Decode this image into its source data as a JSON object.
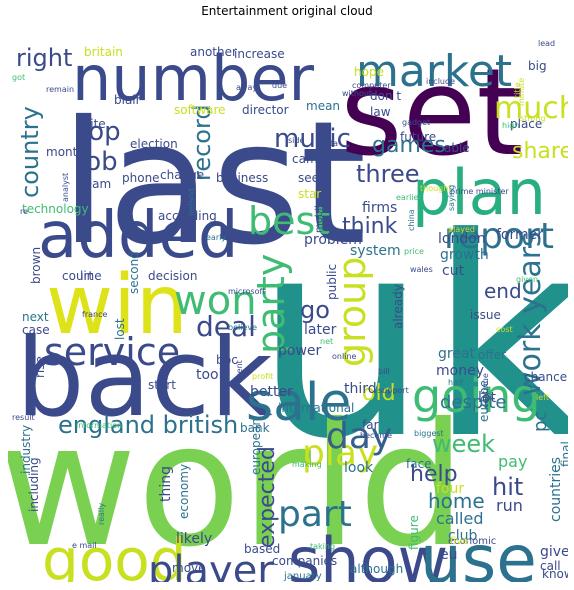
{
  "title": "Entertainment original cloud",
  "palette": {
    "indigo": "#3b4a8b",
    "navy": "#414487",
    "purple": "#46327e",
    "dark_purple": "#440154",
    "blue": "#355f8d",
    "steel": "#2c728e",
    "teal": "#21918c",
    "sea": "#28ae80",
    "green": "#3fbc73",
    "lime": "#7ad151",
    "light_lime": "#95d840",
    "yellow": "#c8e020",
    "bright_yellow": "#dde318"
  },
  "words": [
    {
      "text": "uk",
      "c": "teal"
    },
    {
      "text": "world",
      "c": "lime"
    },
    {
      "text": "last",
      "c": "indigo"
    },
    {
      "text": "set",
      "c": "dark_purple"
    },
    {
      "text": "back",
      "c": "indigo"
    },
    {
      "text": "number",
      "c": "indigo"
    },
    {
      "text": "added",
      "c": "indigo"
    },
    {
      "text": "win",
      "c": "bright_yellow"
    },
    {
      "text": "plan",
      "c": "sea"
    },
    {
      "text": "market",
      "c": "steel"
    },
    {
      "text": "good",
      "c": "yellow"
    },
    {
      "text": "show",
      "c": "indigo"
    },
    {
      "text": "use",
      "c": "steel"
    },
    {
      "text": "sale",
      "c": "steel"
    },
    {
      "text": "player",
      "c": "indigo"
    },
    {
      "text": "service",
      "c": "indigo"
    },
    {
      "text": "going",
      "c": "green"
    },
    {
      "text": "report",
      "c": "steel"
    },
    {
      "text": "won",
      "c": "green"
    },
    {
      "text": "best",
      "c": "green"
    },
    {
      "text": "part",
      "c": "steel"
    },
    {
      "text": "play",
      "c": "yellow"
    },
    {
      "text": "party",
      "c": "green"
    },
    {
      "text": "group",
      "c": "yellow"
    },
    {
      "text": "work years",
      "c": "steel"
    },
    {
      "text": "day",
      "c": "blue"
    },
    {
      "text": "deal",
      "c": "indigo"
    },
    {
      "text": "music",
      "c": "indigo"
    },
    {
      "text": "england british",
      "c": "steel"
    },
    {
      "text": "much",
      "c": "yellow"
    },
    {
      "text": "right",
      "c": "indigo"
    },
    {
      "text": "top",
      "c": "indigo"
    },
    {
      "text": "job",
      "c": "indigo"
    },
    {
      "text": "record",
      "c": "steel"
    },
    {
      "text": "three",
      "c": "indigo"
    },
    {
      "text": "games",
      "c": "steel"
    },
    {
      "text": "share",
      "c": "yellow"
    },
    {
      "text": "think",
      "c": "indigo"
    },
    {
      "text": "week",
      "c": "green"
    },
    {
      "text": "help",
      "c": "indigo"
    },
    {
      "text": "hit",
      "c": "indigo"
    },
    {
      "text": "home",
      "c": "steel"
    },
    {
      "text": "expected",
      "c": "indigo"
    },
    {
      "text": "award",
      "c": "yellow"
    },
    {
      "text": "used",
      "c": "indigo"
    },
    {
      "text": "million",
      "c": "indigo"
    },
    {
      "text": "country",
      "c": "steel"
    },
    {
      "text": "go",
      "c": "indigo"
    },
    {
      "text": "old",
      "c": "yellow"
    },
    {
      "text": "end",
      "c": "indigo"
    },
    {
      "text": "despite",
      "c": "steel"
    },
    {
      "text": "called",
      "c": "steel"
    },
    {
      "text": "pc",
      "c": "steel"
    },
    {
      "text": "club",
      "c": "steel"
    },
    {
      "text": "eu",
      "c": "indigo"
    },
    {
      "text": "run",
      "c": "indigo"
    },
    {
      "text": "four",
      "c": "yellow"
    },
    {
      "text": "face",
      "c": "steel"
    },
    {
      "text": "pay",
      "c": "green"
    },
    {
      "text": "look",
      "c": "steel"
    },
    {
      "text": "far",
      "c": "indigo"
    },
    {
      "text": "become",
      "c": "indigo"
    },
    {
      "text": "biggest",
      "c": "steel"
    },
    {
      "text": "give",
      "c": "indigo"
    },
    {
      "text": "know",
      "c": "indigo"
    },
    {
      "text": "call",
      "c": "indigo"
    },
    {
      "text": "countries",
      "c": "steel"
    },
    {
      "text": "final",
      "c": "steel"
    },
    {
      "text": "figure",
      "c": "green"
    },
    {
      "text": "even",
      "c": "indigo"
    },
    {
      "text": "around",
      "c": "indigo"
    },
    {
      "text": "claim",
      "c": "steel"
    },
    {
      "text": "tv",
      "c": "indigo"
    },
    {
      "text": "companies",
      "c": "indigo"
    },
    {
      "text": "january",
      "c": "steel"
    },
    {
      "text": "based",
      "c": "indigo"
    },
    {
      "text": "point",
      "c": "steel"
    },
    {
      "text": "spokesman",
      "c": "yellow"
    },
    {
      "text": "move",
      "c": "indigo"
    },
    {
      "text": "likely",
      "c": "indigo"
    },
    {
      "text": "thing",
      "c": "indigo"
    },
    {
      "text": "economy",
      "c": "steel"
    },
    {
      "text": "european",
      "c": "steel"
    },
    {
      "text": "bank",
      "c": "steel"
    },
    {
      "text": "international",
      "c": "steel"
    },
    {
      "text": "better",
      "c": "indigo"
    },
    {
      "text": "third",
      "c": "indigo"
    },
    {
      "text": "lot",
      "c": "indigo"
    },
    {
      "text": "money",
      "c": "indigo"
    },
    {
      "text": "great",
      "c": "steel"
    },
    {
      "text": "europe",
      "c": "steel"
    },
    {
      "text": "took",
      "c": "indigo"
    },
    {
      "text": "start",
      "c": "indigo"
    },
    {
      "text": "bbc",
      "c": "indigo"
    },
    {
      "text": "power",
      "c": "indigo"
    },
    {
      "text": "later",
      "c": "indigo"
    },
    {
      "text": "public",
      "c": "indigo"
    },
    {
      "text": "already",
      "c": "indigo"
    },
    {
      "text": "issue",
      "c": "indigo"
    },
    {
      "text": "offer",
      "c": "steel"
    },
    {
      "text": "chance",
      "c": "indigo"
    },
    {
      "text": "cut",
      "c": "indigo"
    },
    {
      "text": "growth",
      "c": "steel"
    },
    {
      "text": "london",
      "c": "indigo"
    },
    {
      "text": "former",
      "c": "indigo"
    },
    {
      "text": "system",
      "c": "steel"
    },
    {
      "text": "problem",
      "c": "indigo"
    },
    {
      "text": "firms",
      "c": "indigo"
    },
    {
      "text": "mobile",
      "c": "indigo"
    },
    {
      "text": "according",
      "c": "indigo"
    },
    {
      "text": "decision",
      "c": "indigo"
    },
    {
      "text": "line",
      "c": "indigo"
    },
    {
      "text": "court",
      "c": "indigo"
    },
    {
      "text": "second",
      "c": "steel"
    },
    {
      "text": "technology",
      "c": "green"
    },
    {
      "text": "team",
      "c": "indigo"
    },
    {
      "text": "month",
      "c": "indigo"
    },
    {
      "text": "site",
      "c": "indigo"
    },
    {
      "text": "blair",
      "c": "indigo"
    },
    {
      "text": "britain",
      "c": "yellow"
    },
    {
      "text": "another",
      "c": "indigo"
    },
    {
      "text": "increase",
      "c": "indigo"
    },
    {
      "text": "software",
      "c": "yellow"
    },
    {
      "text": "director",
      "c": "indigo"
    },
    {
      "text": "election",
      "c": "indigo"
    },
    {
      "text": "business",
      "c": "indigo"
    },
    {
      "text": "change",
      "c": "indigo"
    },
    {
      "text": "phone",
      "c": "indigo"
    },
    {
      "text": "analyst",
      "c": "indigo"
    },
    {
      "text": "mean",
      "c": "steel"
    },
    {
      "text": "came",
      "c": "indigo"
    },
    {
      "text": "side",
      "c": "indigo"
    },
    {
      "text": "seen",
      "c": "indigo"
    },
    {
      "text": "star",
      "c": "yellow"
    },
    {
      "text": "hope",
      "c": "yellow"
    },
    {
      "text": "don t",
      "c": "indigo"
    },
    {
      "text": "law",
      "c": "indigo"
    },
    {
      "text": "future",
      "c": "indigo"
    },
    {
      "text": "able",
      "c": "indigo"
    },
    {
      "text": "place",
      "c": "indigo"
    },
    {
      "text": "big",
      "c": "indigo"
    },
    {
      "text": "brown",
      "c": "indigo"
    },
    {
      "text": "next",
      "c": "steel"
    },
    {
      "text": "case",
      "c": "indigo"
    },
    {
      "text": "rise",
      "c": "indigo"
    },
    {
      "text": "result",
      "c": "indigo"
    },
    {
      "text": "industry",
      "c": "steel"
    },
    {
      "text": "including",
      "c": "indigo"
    },
    {
      "text": "really",
      "c": "steel"
    },
    {
      "text": "user",
      "c": "green"
    },
    {
      "text": "e mail",
      "c": "indigo"
    },
    {
      "text": "information",
      "c": "green"
    },
    {
      "text": "given",
      "c": "green"
    },
    {
      "text": "making",
      "c": "green"
    },
    {
      "text": "taking",
      "c": "green"
    },
    {
      "text": "although",
      "c": "steel"
    },
    {
      "text": "economic",
      "c": "indigo"
    },
    {
      "text": "five",
      "c": "yellow"
    },
    {
      "text": "left",
      "c": "yellow"
    },
    {
      "text": "continue",
      "c": "indigo"
    },
    {
      "text": "half",
      "c": "steel"
    },
    {
      "text": "bill",
      "c": "indigo"
    },
    {
      "text": "support",
      "c": "indigo"
    },
    {
      "text": "online",
      "c": "indigo"
    },
    {
      "text": "profit",
      "c": "yellow"
    },
    {
      "text": "net",
      "c": "green"
    },
    {
      "text": "event",
      "c": "indigo"
    },
    {
      "text": "cost",
      "c": "yellow"
    },
    {
      "text": "lost",
      "c": "steel"
    },
    {
      "text": "believe",
      "c": "steel"
    },
    {
      "text": "wales",
      "c": "indigo"
    },
    {
      "text": "price",
      "c": "green"
    },
    {
      "text": "china",
      "c": "steel"
    },
    {
      "text": "earlier",
      "c": "green"
    },
    {
      "text": "thought",
      "c": "yellow"
    },
    {
      "text": "prime minister",
      "c": "indigo"
    },
    {
      "text": "saying",
      "c": "steel"
    },
    {
      "text": "played",
      "c": "yellow"
    },
    {
      "text": "early",
      "c": "steel"
    },
    {
      "text": "ireland",
      "c": "steel"
    },
    {
      "text": "data",
      "c": "indigo"
    },
    {
      "text": "gadget",
      "c": "indigo"
    },
    {
      "text": "high",
      "c": "green"
    },
    {
      "text": "strong",
      "c": "yellow"
    },
    {
      "text": "title",
      "c": "yellow"
    },
    {
      "text": "minute",
      "c": "yellow"
    },
    {
      "text": "remain",
      "c": "indigo"
    },
    {
      "text": "got",
      "c": "green"
    },
    {
      "text": "lead",
      "c": "indigo"
    },
    {
      "text": "include",
      "c": "indigo"
    },
    {
      "text": "computer",
      "c": "indigo"
    },
    {
      "text": "without",
      "c": "indigo"
    },
    {
      "text": "away",
      "c": "indigo"
    },
    {
      "text": "due",
      "c": "indigo"
    },
    {
      "text": "france",
      "c": "indigo"
    },
    {
      "text": "microsoft",
      "c": "indigo"
    },
    {
      "text": "re",
      "c": "indigo"
    }
  ]
}
